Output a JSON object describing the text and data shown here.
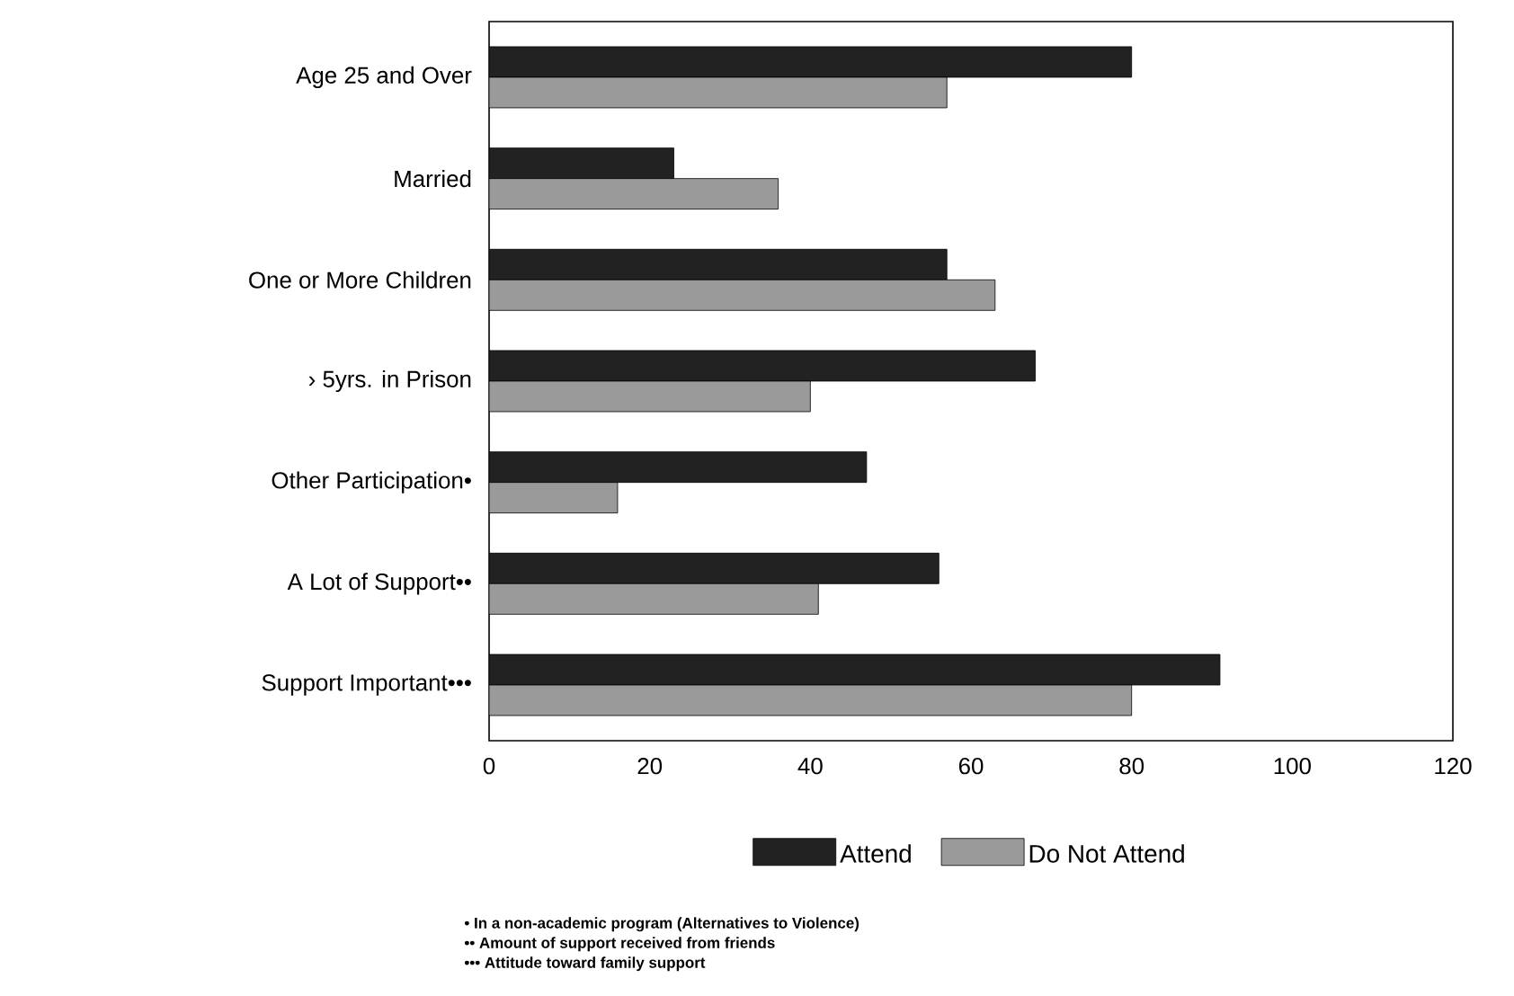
{
  "chart_data": {
    "type": "bar",
    "orientation": "horizontal",
    "categories": [
      "Age 25 and Over",
      "Married",
      "One or More Children",
      "› 5yrs. in Prison",
      "Other Participation•",
      "A Lot of Support••",
      "Support Important•••"
    ],
    "series": [
      {
        "name": "Attend",
        "color": "#222222",
        "values": [
          80,
          23,
          57,
          68,
          47,
          56,
          91
        ]
      },
      {
        "name": "Do Not Attend",
        "color": "#9a9a9a",
        "values": [
          57,
          36,
          63,
          40,
          16,
          41,
          80
        ]
      }
    ],
    "xlim": [
      0,
      120
    ],
    "xticks": [
      0,
      20,
      40,
      60,
      80,
      100,
      120
    ],
    "legend": "bottom",
    "grid": false,
    "annotations": [
      "• In a non-academic program (Alternatives to Violence)",
      "•• Amount of support received from friends",
      "••• Attitude toward family support"
    ]
  }
}
